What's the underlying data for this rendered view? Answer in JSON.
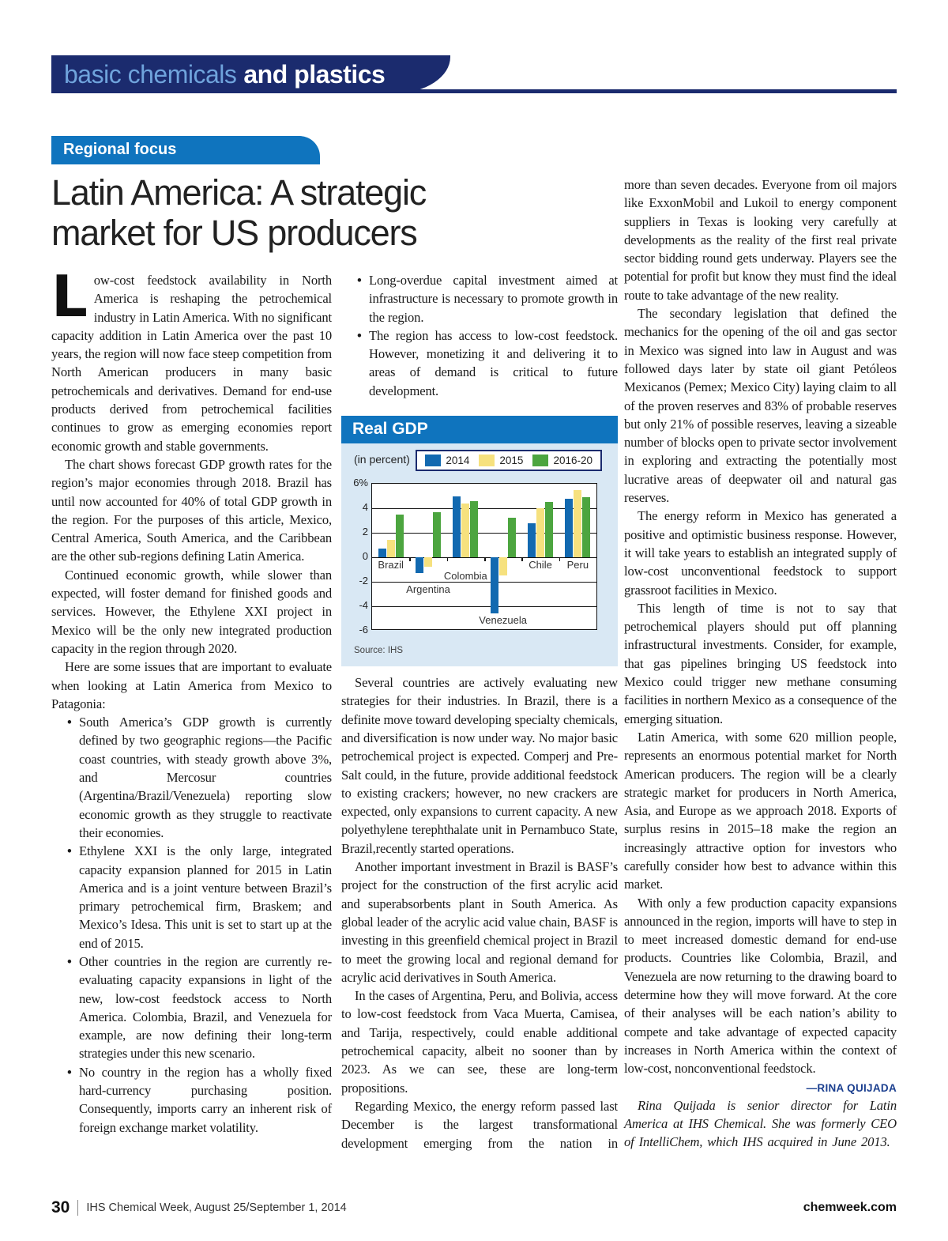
{
  "colors": {
    "navy": "#1B2B6E",
    "blue": "#0F74BE",
    "lightblue": "#6FA3DC",
    "panel": "#D9E8F4",
    "text": "#1a1a1a",
    "byline": "#1B3F8F"
  },
  "header": {
    "band_light": "basic chemicals",
    "band_bold": "and plastics"
  },
  "tag": "Regional focus",
  "title_line1": "Latin America: A strategic",
  "title_line2": "market for US producers",
  "col1": {
    "dropcap": "L",
    "p1": "ow-cost feedstock availability in North America is reshaping the petrochemical industry in Latin America. With no significant capacity addition in Latin America over the past 10 years, the region will now face steep competition from North American producers in many basic petrochemicals and derivatives. Demand for end-use products derived from petrochemical facilities continues to grow as emerging economies report economic growth and stable governments.",
    "p2": "The chart shows forecast GDP growth rates for the region’s major economies through 2018. Brazil has until now accounted for 40% of total GDP growth in the region. For the purposes of this article, Mexico, Central America, South America, and the Caribbean are the other sub-regions defining Latin America.",
    "p3": "Continued economic growth, while slower than expected, will foster demand for finished goods and services. However, the Ethylene XXI project in Mexico will be the only new integrated production capacity in the region through 2020.",
    "p4": "Here are some issues that are important to evaluate when looking at Latin America from Mexico to Patagonia:",
    "bullets": [
      "South America’s GDP growth is currently defined by two geographic regions—the Pacific coast countries, with steady growth above 3%, and Mercosur countries (Argentina/Brazil/Venezuela) reporting slow economic growth as they struggle to reactivate their economies.",
      "Ethylene XXI is the only large, integrated capacity expansion planned for 2015 in Latin America and is a joint venture between Brazil’s primary petrochemical firm, Braskem; and Mexico’s Idesa. This unit is set to start up at the end of 2015.",
      "Other countries in the region are currently re-evaluating capacity expansions in light of the new, low-cost feedstock access to North America. Colombia, Brazil, and Venezuela for example, are now defining their long-term strategies under this new scenario.",
      "No country in the region has a wholly fixed hard-currency purchasing position. Consequently, imports carry an inherent risk of foreign exchange market volatility."
    ]
  },
  "col2": {
    "bullets": [
      "Long-overdue capital investment aimed at infrastructure is necessary to promote growth in the region.",
      "The region has access to low-cost feedstock. However, monetizing it and delivering it to areas of demand is critical to future development."
    ],
    "p1": "Several countries are actively evaluating new strategies for their industries. In Brazil, there is a definite move toward developing specialty chemicals, and diversification is now under way. No major basic petrochemical project is expected. Comperj and Pre-Salt could, in the future, provide additional feedstock to existing crackers; however, no new crackers are expected, only expansions to current capacity. A new polyethylene terephthalate unit in Pernambuco State, Brazil,recently started operations.",
    "p2": "Another important investment in Brazil is BASF’s project for the construction of the first acrylic acid and superabsorbents plant in South America. As global leader of the acrylic acid value chain, BASF is investing in this greenfield chemical project in Brazil to meet the growing local and regional demand for acrylic acid derivatives in South America.",
    "p3": "In the cases of Argentina, Peru, and Bolivia, access to low-cost feedstock from Vaca Muerta, Camisea, and Tarija, respectively, could enable additional petrochemical capacity, albeit no sooner than by 2023. As we can see, these are long-term propositions.",
    "p4": "Regarding Mexico, the energy reform passed last December is the largest transformational development emerging from the nation in"
  },
  "col3": {
    "p1": "more than seven decades. Everyone from oil majors like ExxonMobil and Lukoil to energy component suppliers in Texas is looking very carefully at developments as the reality of the first real private sector bidding round gets underway. Players see the potential for profit but know they must find the ideal route to take advantage of the new reality.",
    "p2": "The secondary legislation that defined the mechanics for the opening of the oil and gas sector in Mexico was signed into law in August and was followed days later by state oil giant Petóleos Mexicanos (Pemex; Mexico City) laying claim to all of the proven reserves and 83% of probable reserves but only 21% of possible reserves, leaving a sizeable number of blocks open to private sector involvement in exploring and extracting the potentially most lucrative areas of deepwater oil and natural gas reserves.",
    "p3": "The energy reform in Mexico has generated a positive and optimistic business response. However, it will take years to establish an integrated supply of low-cost unconventional feedstock to support grassroot facilities in Mexico.",
    "p4": "This length of time is not to say that petrochemical players should put off planning infrastructural investments. Consider, for example, that gas pipelines bringing US feedstock into Mexico could trigger new methane consuming facilities in northern Mexico as a consequence of the emerging situation.",
    "p5": "Latin America, with some 620 million people, represents an enormous potential market for North American producers. The region will be a clearly strategic market for producers in North America, Asia, and Europe as we approach 2018. Exports of surplus resins in 2015–18 make the region an increasingly attractive option for investors who carefully consider how best to advance within this market.",
    "p6": "With only a few production capacity expansions announced in the region, imports will have to step in to meet increased domestic demand for end-use products. Countries like Colombia, Brazil, and Venezuela are now returning to the drawing board to determine how they will move forward. At the core of their analyses will be each nation’s ability to compete and take advantage of expected capacity increases in North America within the context of low-cost, nonconventional feedstock.",
    "byline": "—RINA QUIJADA",
    "bio": "Rina Quijada is senior director for Latin America at IHS Chemical. She was formerly CEO of IntelliChem, which IHS acquired in June 2013."
  },
  "chart_data": {
    "type": "bar",
    "title": "Real GDP",
    "subtitle": "(in percent)",
    "source": "Source: IHS",
    "categories": [
      "Brazil",
      "Argentina",
      "Colombia",
      "Venezuela",
      "Chile",
      "Peru"
    ],
    "series": [
      {
        "name": "2014",
        "color": "#1269B0",
        "values": [
          0.7,
          -1.3,
          5.0,
          -4.6,
          2.8,
          4.8
        ]
      },
      {
        "name": "2015",
        "color": "#F6E17E",
        "values": [
          1.4,
          -0.8,
          4.4,
          -1.5,
          4.0,
          5.5
        ]
      },
      {
        "name": "2016-20",
        "color": "#4CA53F",
        "values": [
          3.5,
          3.7,
          4.6,
          3.2,
          4.5,
          4.9
        ]
      }
    ],
    "ylim": [
      -6,
      6
    ],
    "yticks": [
      6,
      4,
      2,
      0,
      -2,
      -4,
      -6
    ],
    "ytick_labels": [
      "6%",
      "4",
      "2",
      "0",
      "-2",
      "-4",
      "-6"
    ],
    "gridline_values": [
      4,
      2,
      0,
      -2,
      -4
    ],
    "grid": true,
    "legend_position": "top",
    "category_label_levels": [
      -0.6,
      -2.6,
      -1.5,
      -5.1,
      -0.6,
      -0.6
    ]
  },
  "footer": {
    "page_number": "30",
    "publication": "IHS Chemical Week, August 25/September 1, 2014",
    "website": "chemweek.com"
  }
}
